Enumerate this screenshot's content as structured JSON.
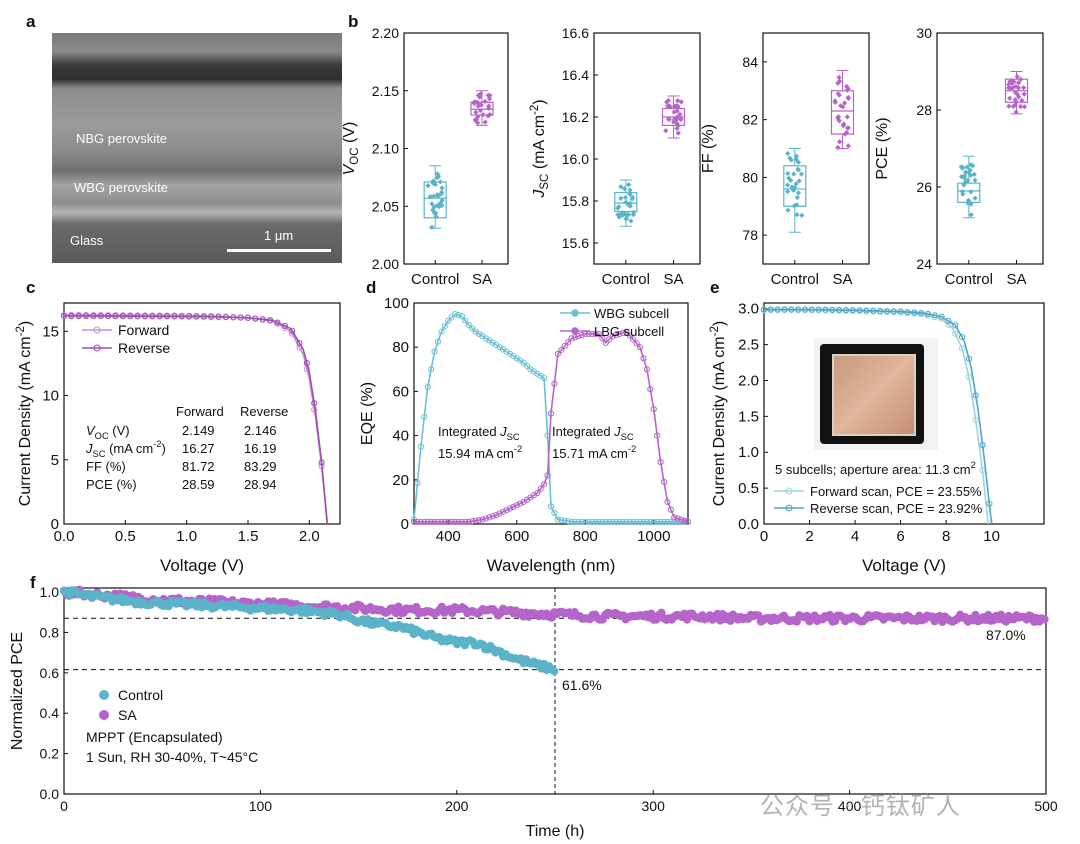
{
  "panel_labels": {
    "a": "a",
    "b": "b",
    "c": "c",
    "d": "d",
    "e": "e",
    "f": "f"
  },
  "sem": {
    "nbg_label": "NBG perovskite",
    "wbg_label": "WBG perovskite",
    "glass_label": "Glass",
    "scale_label": "1 μm"
  },
  "watermark": "公众号 · 钙钛矿人",
  "colors": {
    "control": "#5bb3c9",
    "sa": "#b565c9",
    "forward": "#c98fd6",
    "reverse": "#9b4fb0",
    "wbg": "#6cc0d6",
    "lbg": "#b565c9",
    "e_forward": "#9dd3e2",
    "e_reverse": "#4aa8c2"
  },
  "chart_data": [
    {
      "id": "b1",
      "type": "box",
      "ylabel": "V_OC (V)",
      "ylabel_main": "V",
      "ylabel_sub": "OC",
      "ylabel_unit": " (V)",
      "ylim": [
        2.0,
        2.2
      ],
      "yticks": [
        "2.00",
        "2.05",
        "2.10",
        "2.15",
        "2.20"
      ],
      "categories": [
        "Control",
        "SA"
      ],
      "boxes": [
        {
          "name": "Control",
          "q1": 2.04,
          "median": 2.057,
          "q3": 2.071,
          "whisker_low": 2.031,
          "whisker_high": 2.085
        },
        {
          "name": "SA",
          "q1": 2.129,
          "median": 2.134,
          "q3": 2.14,
          "whisker_low": 2.12,
          "whisker_high": 2.15
        }
      ]
    },
    {
      "id": "b2",
      "type": "box",
      "ylabel": "J_SC (mA cm-2)",
      "ylabel_main": "J",
      "ylabel_sub": "SC",
      "ylabel_unit": " (mA cm",
      "ylabel_sup": "-2",
      "ylabel_close": ")",
      "ylim": [
        15.5,
        16.6
      ],
      "yticks": [
        "15.6",
        "15.8",
        "16.0",
        "16.2",
        "16.4",
        "16.6"
      ],
      "categories": [
        "Control",
        "SA"
      ],
      "boxes": [
        {
          "name": "Control",
          "q1": 15.75,
          "median": 15.79,
          "q3": 15.84,
          "whisker_low": 15.68,
          "whisker_high": 15.9
        },
        {
          "name": "SA",
          "q1": 16.16,
          "median": 16.2,
          "q3": 16.24,
          "whisker_low": 16.1,
          "whisker_high": 16.3
        }
      ]
    },
    {
      "id": "b3",
      "type": "box",
      "ylabel": "FF (%)",
      "ylim": [
        77,
        85
      ],
      "yticks": [
        "78",
        "80",
        "82",
        "84"
      ],
      "categories": [
        "Control",
        "SA"
      ],
      "boxes": [
        {
          "name": "Control",
          "q1": 79.0,
          "median": 79.6,
          "q3": 80.4,
          "whisker_low": 78.1,
          "whisker_high": 81.0
        },
        {
          "name": "SA",
          "q1": 81.5,
          "median": 82.3,
          "q3": 83.0,
          "whisker_low": 81.0,
          "whisker_high": 83.7
        }
      ]
    },
    {
      "id": "b4",
      "type": "box",
      "ylabel": "PCE (%)",
      "ylim": [
        24,
        30
      ],
      "yticks": [
        "24",
        "26",
        "28",
        "30"
      ],
      "categories": [
        "Control",
        "SA"
      ],
      "boxes": [
        {
          "name": "Control",
          "q1": 25.6,
          "median": 25.9,
          "q3": 26.1,
          "whisker_low": 25.2,
          "whisker_high": 26.8
        },
        {
          "name": "SA",
          "q1": 28.2,
          "median": 28.5,
          "q3": 28.8,
          "whisker_low": 27.9,
          "whisker_high": 29.0
        }
      ]
    },
    {
      "id": "c",
      "type": "line",
      "xlabel": "Voltage (V)",
      "ylabel": "Current Density (mA cm-2)",
      "ylabel_text": "Current Density (mA cm",
      "ylabel_sup": "-2",
      "ylabel_close": ")",
      "xlim": [
        0,
        2.25
      ],
      "ylim": [
        0,
        17.2
      ],
      "xticks": [
        "0.0",
        "0.5",
        "1.0",
        "1.5",
        "2.0"
      ],
      "xtick_values": [
        0,
        0.5,
        1.0,
        1.5,
        2.0
      ],
      "yticks": [
        "0",
        "5",
        "10",
        "15"
      ],
      "ytick_values": [
        0,
        5,
        10,
        15
      ],
      "series": [
        {
          "name": "Forward",
          "x": [
            0,
            0.3,
            0.6,
            0.9,
            1.2,
            1.5,
            1.7,
            1.85,
            1.95,
            2.0,
            2.05,
            2.1,
            2.149
          ],
          "y": [
            16.27,
            16.26,
            16.24,
            16.22,
            16.18,
            16.05,
            15.8,
            15.0,
            13.2,
            11.3,
            8.3,
            4.5,
            0
          ]
        },
        {
          "name": "Reverse",
          "x": [
            0,
            0.3,
            0.6,
            0.9,
            1.2,
            1.5,
            1.7,
            1.85,
            1.95,
            2.0,
            2.05,
            2.1,
            2.146
          ],
          "y": [
            16.19,
            16.18,
            16.17,
            16.16,
            16.13,
            16.05,
            15.85,
            15.2,
            13.6,
            11.8,
            8.8,
            4.8,
            0
          ]
        }
      ],
      "table": {
        "headers": [
          "Forward",
          "Reverse"
        ],
        "rows": [
          {
            "label_main": "V",
            "label_sub": "OC",
            "label_rest": " (V)",
            "forward": "2.149",
            "reverse": "2.146"
          },
          {
            "label_main": "J",
            "label_sub": "SC",
            "label_rest": " (mA cm",
            "label_sup": "-2",
            "label_close": ")",
            "forward": "16.27",
            "reverse": "16.19"
          },
          {
            "label_main": "FF (%)",
            "forward": "81.72",
            "reverse": "83.29"
          },
          {
            "label_main": "PCE (%)",
            "forward": "28.59",
            "reverse": "28.94"
          }
        ]
      }
    },
    {
      "id": "d",
      "type": "line",
      "xlabel": "Wavelength (nm)",
      "ylabel": "EQE (%)",
      "xlim": [
        300,
        1100
      ],
      "ylim": [
        0,
        100
      ],
      "xticks": [
        "400",
        "600",
        "800",
        "1000"
      ],
      "xtick_values": [
        400,
        600,
        800,
        1000
      ],
      "yticks": [
        "0",
        "20",
        "40",
        "60",
        "80",
        "100"
      ],
      "ytick_values": [
        0,
        20,
        40,
        60,
        80,
        100
      ],
      "series": [
        {
          "name": "WBG subcell",
          "x": [
            300,
            320,
            340,
            360,
            380,
            400,
            420,
            440,
            460,
            480,
            500,
            520,
            540,
            560,
            580,
            600,
            620,
            640,
            660,
            680,
            690,
            700,
            720,
            760,
            800,
            900,
            1000,
            1100
          ],
          "y": [
            2,
            35,
            62,
            78,
            87,
            92,
            95,
            94,
            90,
            87,
            85,
            83,
            81,
            79,
            77,
            75,
            73,
            70,
            68,
            66,
            40,
            8,
            2,
            1,
            1,
            1,
            1,
            1
          ]
        },
        {
          "name": "LBG subcell",
          "x": [
            300,
            400,
            460,
            500,
            540,
            580,
            620,
            660,
            680,
            690,
            700,
            720,
            760,
            800,
            840,
            860,
            880,
            920,
            960,
            980,
            1000,
            1020,
            1040,
            1060,
            1100
          ],
          "y": [
            1,
            1,
            1,
            2,
            4,
            7,
            10,
            14,
            18,
            22,
            50,
            77,
            84,
            86,
            86,
            82,
            85,
            87,
            80,
            70,
            52,
            28,
            10,
            3,
            1
          ]
        }
      ],
      "annotations": [
        {
          "line1_pre": "Integrated ",
          "line1_main": "J",
          "line1_sub": "SC",
          "line2": "15.94 mA cm",
          "line2_sup": "-2"
        },
        {
          "line1_pre": "Integrated ",
          "line1_main": "J",
          "line1_sub": "SC",
          "line2": "15.71 mA cm",
          "line2_sup": "-2"
        }
      ]
    },
    {
      "id": "e",
      "type": "line",
      "xlabel": "Voltage (V)",
      "ylabel": "Current Density (mA cm-2)",
      "ylabel_text": "Current Density (mA cm",
      "ylabel_sup": "-2",
      "ylabel_close": ")",
      "xlim": [
        0,
        12.3
      ],
      "ylim": [
        0,
        3.08
      ],
      "xticks": [
        "0",
        "2",
        "4",
        "6",
        "8",
        "10"
      ],
      "xtick_values": [
        0,
        2,
        4,
        6,
        8,
        10
      ],
      "yticks": [
        "0.0",
        "0.5",
        "1.0",
        "1.5",
        "2.0",
        "2.5",
        "3.0"
      ],
      "ytick_values": [
        0,
        0.5,
        1.0,
        1.5,
        2.0,
        2.5,
        3.0
      ],
      "note": "5 subcells; aperture area: 11.3 cm",
      "note_sup": "2",
      "series": [
        {
          "name": "Forward scan, PCE = 23.55%",
          "x": [
            0,
            2,
            4,
            6,
            7,
            7.8,
            8.3,
            8.7,
            9.0,
            9.3,
            9.6,
            9.85
          ],
          "y": [
            2.98,
            2.98,
            2.97,
            2.95,
            2.92,
            2.86,
            2.72,
            2.45,
            2.05,
            1.45,
            0.75,
            0
          ]
        },
        {
          "name": "Reverse scan, PCE = 23.92%",
          "x": [
            0,
            2,
            4,
            6,
            7,
            7.8,
            8.4,
            8.8,
            9.1,
            9.4,
            9.7,
            10.0
          ],
          "y": [
            2.99,
            2.99,
            2.98,
            2.96,
            2.94,
            2.89,
            2.77,
            2.55,
            2.18,
            1.6,
            0.85,
            0
          ]
        }
      ]
    },
    {
      "id": "f",
      "type": "scatter",
      "xlabel": "Time (h)",
      "ylabel": "Normalized PCE",
      "xlim": [
        0,
        500
      ],
      "ylim": [
        0,
        1.02
      ],
      "xticks": [
        "0",
        "100",
        "200",
        "300",
        "400",
        "500"
      ],
      "xtick_values": [
        0,
        100,
        200,
        300,
        400,
        500
      ],
      "yticks": [
        "0.0",
        "0.2",
        "0.4",
        "0.6",
        "0.8",
        "1.0"
      ],
      "ytick_values": [
        0,
        0.2,
        0.4,
        0.6,
        0.8,
        1.0
      ],
      "series": [
        {
          "name": "Control",
          "x": [
            0,
            20,
            40,
            60,
            80,
            100,
            120,
            140,
            150,
            160,
            170,
            180,
            190,
            200,
            210,
            220,
            230,
            240,
            250
          ],
          "y": [
            1.0,
            0.97,
            0.95,
            0.94,
            0.93,
            0.92,
            0.91,
            0.89,
            0.86,
            0.84,
            0.83,
            0.8,
            0.77,
            0.75,
            0.75,
            0.71,
            0.67,
            0.64,
            0.616
          ]
        },
        {
          "name": "SA",
          "x": [
            0,
            25,
            50,
            75,
            100,
            125,
            150,
            175,
            200,
            225,
            250,
            275,
            300,
            325,
            350,
            375,
            400,
            425,
            450,
            475,
            500
          ],
          "y": [
            1.0,
            0.98,
            0.96,
            0.95,
            0.94,
            0.93,
            0.92,
            0.91,
            0.91,
            0.9,
            0.89,
            0.88,
            0.88,
            0.88,
            0.87,
            0.87,
            0.87,
            0.87,
            0.87,
            0.87,
            0.87
          ]
        }
      ],
      "hlines": [
        0.87,
        0.616
      ],
      "vline": 250,
      "labels": {
        "sa_end": "87.0%",
        "control_end": "61.6%"
      },
      "legend_notes": [
        "MPPT (Encapsulated)",
        "1 Sun, RH 30-40%, T~45°C"
      ]
    }
  ]
}
